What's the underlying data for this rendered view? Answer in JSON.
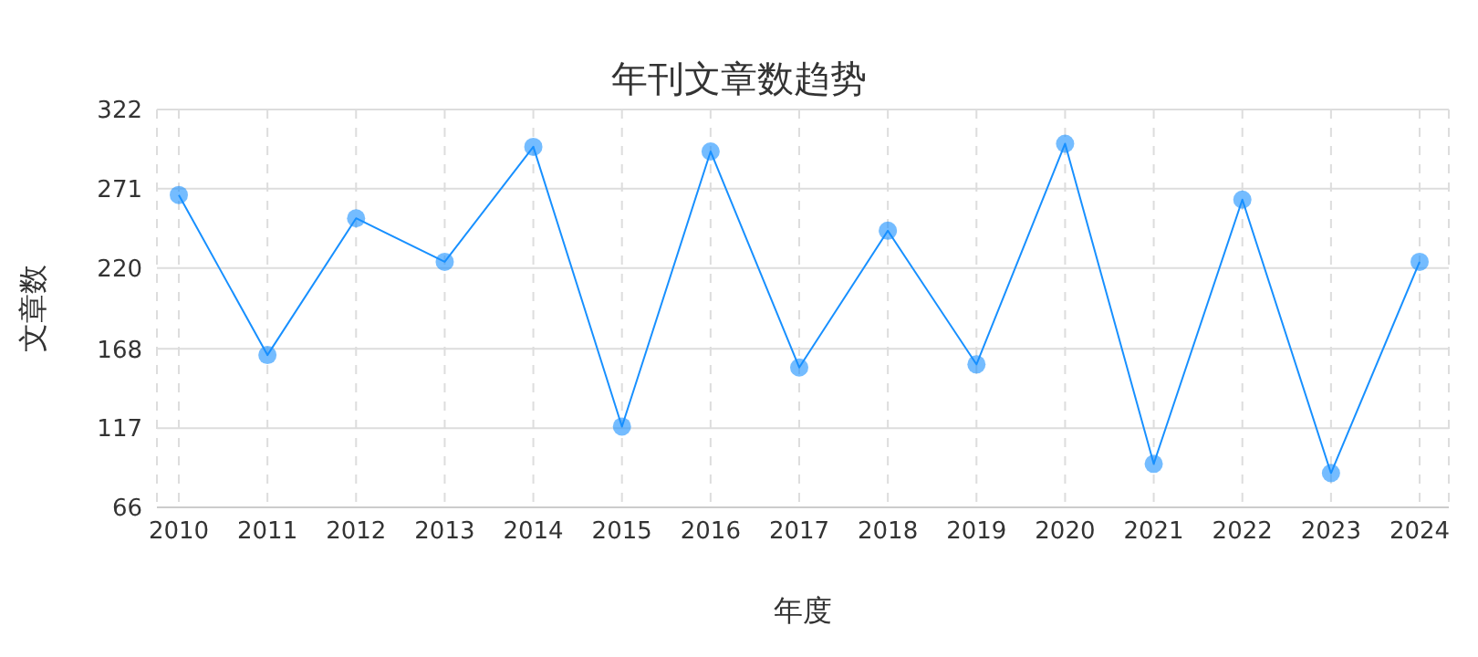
{
  "chart_data": {
    "type": "line",
    "title": "年刊文章数趋势",
    "xlabel": "年度",
    "ylabel": "文章数",
    "categories": [
      "2010",
      "2011",
      "2012",
      "2013",
      "2014",
      "2015",
      "2016",
      "2017",
      "2018",
      "2019",
      "2020",
      "2021",
      "2022",
      "2023",
      "2024"
    ],
    "series": [
      {
        "color": "#1890ff",
        "values": [
          267,
          164,
          252,
          224,
          298,
          118,
          295,
          156,
          244,
          158,
          300,
          94,
          264,
          88,
          224
        ]
      }
    ],
    "ylim": [
      66,
      322
    ],
    "yticks": [
      66,
      117,
      168,
      220,
      271,
      322
    ],
    "grid": true,
    "marker": "circle",
    "line_style": "solid"
  }
}
